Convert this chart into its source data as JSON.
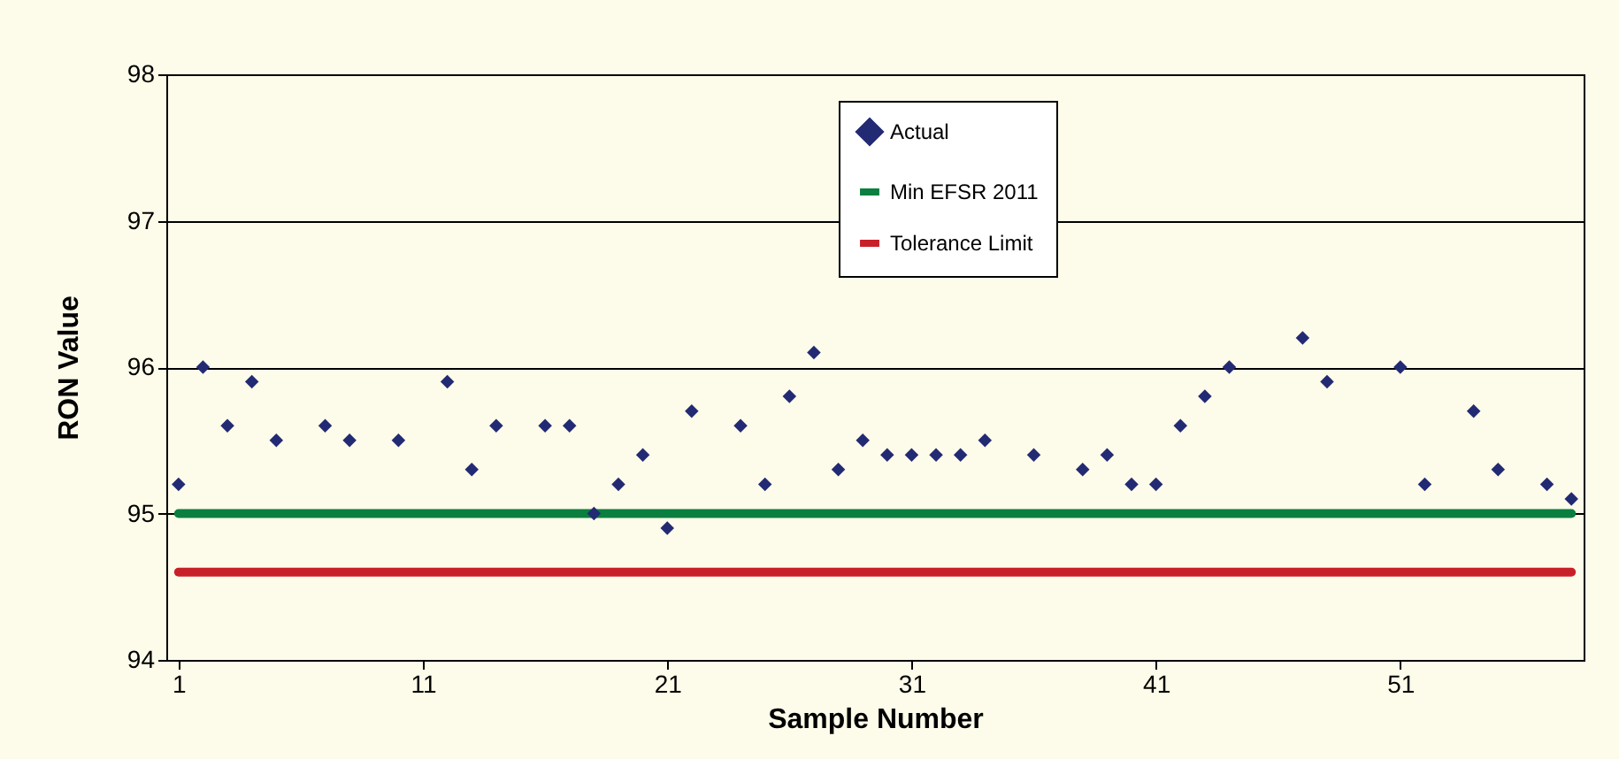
{
  "chart_data": {
    "type": "scatter",
    "xlabel": "Sample Number",
    "ylabel": "RON Value",
    "xlim": [
      0.5,
      58.5
    ],
    "xticks": [
      1,
      11,
      21,
      31,
      41,
      51
    ],
    "ylim": [
      94,
      98
    ],
    "yticks": [
      94,
      95,
      96,
      97,
      98
    ],
    "grid": "y",
    "legend": "top",
    "marker": "diamond",
    "series": [
      {
        "name": "Actual",
        "color": "#232a74",
        "x": [
          1,
          2,
          3,
          4,
          5,
          7,
          8,
          10,
          12,
          13,
          14,
          16,
          17,
          18,
          19,
          20,
          21,
          22,
          24,
          25,
          26,
          27,
          28,
          29,
          30,
          31,
          32,
          33,
          34,
          36,
          38,
          39,
          40,
          41,
          42,
          43,
          44,
          47,
          48,
          51,
          52,
          54,
          55,
          57,
          58
        ],
        "values": [
          95.2,
          96.0,
          95.6,
          95.9,
          95.5,
          95.6,
          95.5,
          95.5,
          95.9,
          95.3,
          95.6,
          95.6,
          95.6,
          95.0,
          95.2,
          95.4,
          94.9,
          95.7,
          95.6,
          95.2,
          95.8,
          96.1,
          95.3,
          95.5,
          95.4,
          95.4,
          95.4,
          95.4,
          95.5,
          95.4,
          95.3,
          95.4,
          95.2,
          95.2,
          95.6,
          95.8,
          96.0,
          96.2,
          95.9,
          96.0,
          95.2,
          95.7,
          95.3,
          95.2,
          95.1
        ]
      }
    ],
    "ref_lines": [
      {
        "axis": "y",
        "value": 95,
        "label": "Min EFSR 2011",
        "color": "#0a7f3f"
      },
      {
        "axis": "y",
        "value": 94.6,
        "label": "Tolerance Limit",
        "color": "#c8202a"
      }
    ]
  }
}
